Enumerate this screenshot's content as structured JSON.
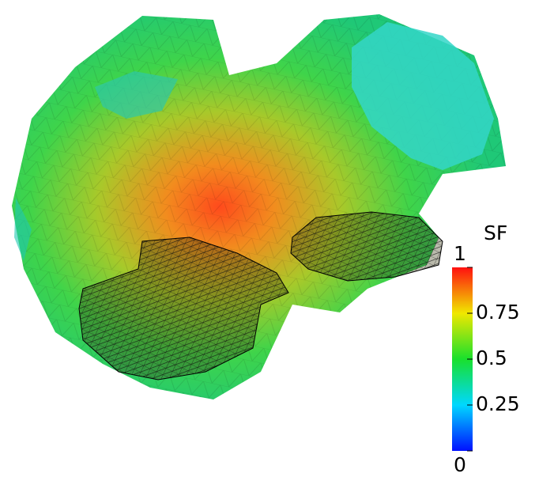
{
  "colorbar": {
    "title": "SF",
    "range": [
      0,
      1
    ],
    "ticks": [
      0,
      0.25,
      0.5,
      0.75,
      1
    ]
  }
}
